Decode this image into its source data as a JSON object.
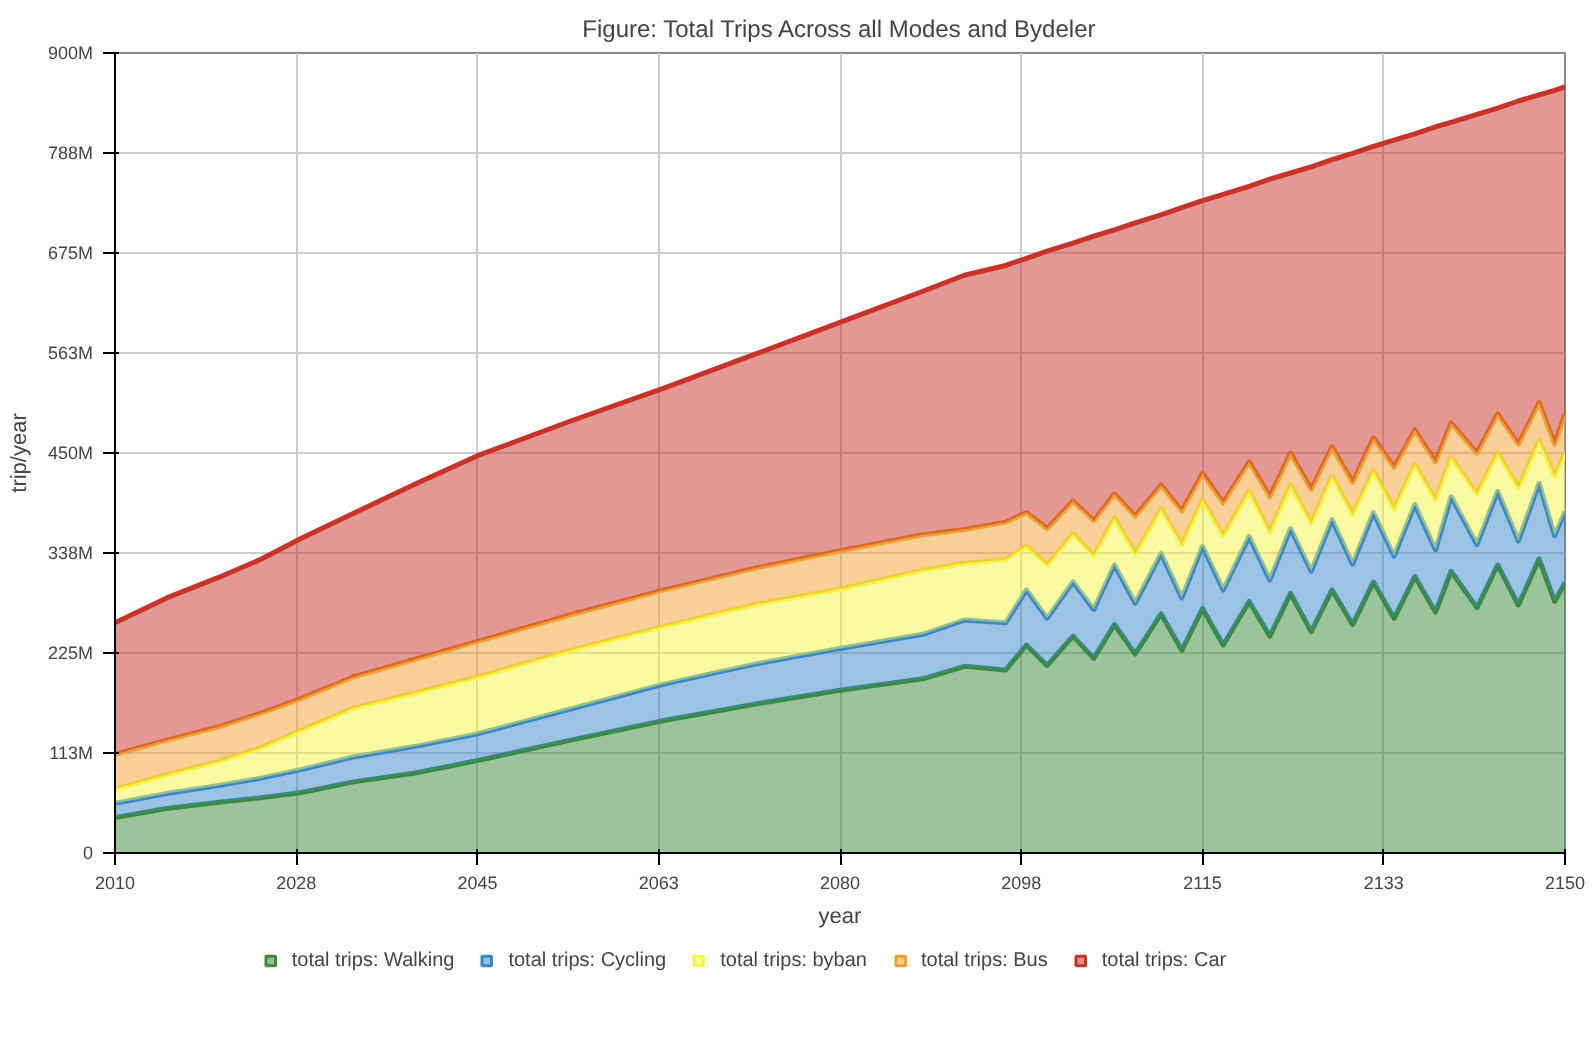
{
  "chart_data": {
    "type": "area",
    "stacked": true,
    "title": "Figure: Total Trips Across all Modes and Bydeler",
    "xlabel": "year",
    "ylabel": "trip/year",
    "x": [
      2010,
      2015,
      2020,
      2024,
      2028,
      2033,
      2039,
      2045,
      2054,
      2063,
      2072,
      2080,
      2088,
      2092,
      2096,
      2098,
      2100,
      2102.5,
      2104.5,
      2106.5,
      2108.5,
      2111,
      2113,
      2115,
      2117,
      2119.5,
      2121.5,
      2123.5,
      2125.5,
      2127.5,
      2129.5,
      2131.5,
      2133.5,
      2135.5,
      2137.5,
      2139,
      2141.5,
      2143.5,
      2145.5,
      2147.5,
      2149,
      2150
    ],
    "series": [
      {
        "name": "total trips: Walking",
        "color": "#3a8a3a",
        "values": [
          40,
          50,
          57,
          62,
          68,
          80,
          90,
          104,
          127,
          149,
          168,
          183,
          196,
          210,
          206,
          234,
          211,
          244,
          219,
          257,
          224,
          269,
          228,
          275,
          234,
          283,
          244,
          292,
          249,
          296,
          257,
          305,
          264,
          311,
          271,
          317,
          276,
          324,
          279,
          331,
          283,
          304
        ]
      },
      {
        "name": "total trips: Cycling",
        "color": "#3a88c8",
        "values": [
          16,
          17,
          19,
          22,
          26,
          28,
          30,
          30,
          35,
          41,
          45,
          47,
          50,
          52,
          53,
          62,
          53,
          61,
          55,
          67,
          57,
          68,
          59,
          70,
          62,
          73,
          63,
          73,
          68,
          79,
          68,
          78,
          70,
          81,
          70,
          84,
          71,
          83,
          72,
          85,
          74,
          80
        ]
      },
      {
        "name": "total trips: byban",
        "color": "#f5f545",
        "values": [
          16,
          21,
          27,
          34,
          44,
          55,
          60,
          64,
          66,
          65,
          67,
          67,
          72,
          64,
          71,
          49,
          60,
          54,
          60,
          53,
          56,
          50,
          60,
          52,
          61,
          51,
          54,
          49,
          54,
          49,
          56,
          47,
          53,
          45,
          56,
          44,
          57,
          43,
          60,
          48,
          67,
          66
        ]
      },
      {
        "name": "total trips: Bus",
        "color": "#f0a030",
        "values": [
          39,
          39,
          39,
          39,
          36,
          35,
          38,
          40,
          40,
          41,
          41,
          43,
          40,
          38,
          42,
          38,
          41,
          37,
          40,
          27,
          42,
          27,
          38,
          30,
          37,
          33,
          40,
          36,
          38,
          33,
          36,
          37,
          47,
          39,
          43,
          39,
          46,
          44,
          49,
          43,
          36,
          44
        ]
      },
      {
        "name": "total trips: Car",
        "color": "#c83228",
        "values": [
          148,
          160,
          168,
          173,
          180,
          184,
          197,
          209,
          218,
          227,
          241,
          257,
          274,
          286,
          289,
          286,
          312,
          290,
          320,
          297,
          330,
          304,
          341,
          307,
          347,
          310,
          357,
          315,
          363,
          323,
          370,
          328,
          368,
          333,
          377,
          338,
          381,
          344,
          386,
          346,
          398,
          368
        ]
      }
    ],
    "xlim": [
      2010,
      2150
    ],
    "ylim": [
      0,
      900
    ],
    "xticks": [
      2010,
      {
        "value": 2027.5,
        "label": "2028"
      },
      2045,
      {
        "value": 2062.5,
        "label": "2063"
      },
      2080,
      {
        "value": 2097.5,
        "label": "2098"
      },
      2115,
      {
        "value": 2132.5,
        "label": "2133"
      },
      2150
    ],
    "yticks": [
      {
        "value": 0,
        "label": "0"
      },
      {
        "value": 112.5,
        "label": "113M"
      },
      {
        "value": 225,
        "label": "225M"
      },
      {
        "value": 337.5,
        "label": "338M"
      },
      {
        "value": 450,
        "label": "450M"
      },
      {
        "value": 562.5,
        "label": "563M"
      },
      {
        "value": 675,
        "label": "675M"
      },
      {
        "value": 787.5,
        "label": "788M"
      },
      {
        "value": 900,
        "label": "900M"
      }
    ],
    "grid": true,
    "legend": "bottom"
  }
}
